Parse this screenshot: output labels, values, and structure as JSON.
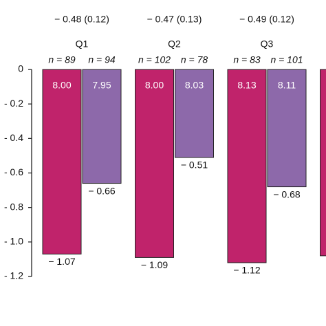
{
  "chart_data": {
    "type": "bar",
    "categories": [
      "Q1",
      "Q2",
      "Q3",
      null
    ],
    "differences": [
      "− 0.48 (0.12)",
      "− 0.47 (0.13)",
      "− 0.49 (0.12)",
      null
    ],
    "series": [
      {
        "color": "#c0236b",
        "values": [
          -1.07,
          -1.09,
          -1.12,
          -1.08
        ],
        "value_labels": [
          "− 1.07",
          "− 1.09",
          "− 1.12",
          null
        ],
        "n_labels": [
          "n = 89",
          "n = 102",
          "n = 83",
          null
        ],
        "inner_labels": [
          "8.00",
          "8.00",
          "8.13",
          null
        ]
      },
      {
        "color": "#8d69aa",
        "values": [
          -0.66,
          -0.51,
          -0.68,
          null
        ],
        "value_labels": [
          "− 0.66",
          "− 0.51",
          "− 0.68",
          null
        ],
        "n_labels": [
          "n = 94",
          "n = 78",
          "n = 101",
          null
        ],
        "inner_labels": [
          "7.95",
          "8.03",
          "8.11",
          null
        ]
      }
    ],
    "ylim": [
      -1.2,
      0
    ],
    "yticks": [
      0,
      {
        "value": -0.2,
        "label": "- 0.2"
      },
      {
        "value": -0.4,
        "label": "- 0.4"
      },
      {
        "value": -0.6,
        "label": "- 0.6"
      },
      {
        "value": -0.8,
        "label": "- 0.8"
      },
      {
        "value": -1.0,
        "label": "- 1.0"
      },
      {
        "value": -1.2,
        "label": "- 1.2"
      }
    ]
  }
}
